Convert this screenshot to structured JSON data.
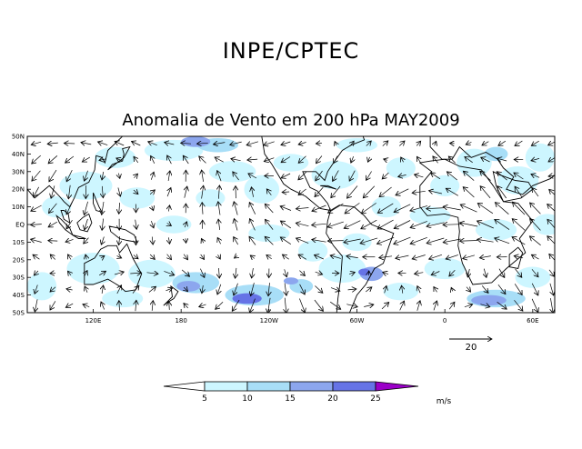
{
  "header": {
    "title": "INPE/CPTEC",
    "subtitle": "Anomalia de Vento em 200 hPa MAY2009"
  },
  "map": {
    "lat_labels": [
      "50N",
      "40N",
      "30N",
      "20N",
      "10N",
      "EQ",
      "10S",
      "20S",
      "30S",
      "40S",
      "50S"
    ],
    "lon_labels": [
      "120E",
      "180",
      "120W",
      "60W",
      "0",
      "60E"
    ],
    "lat_range": [
      -50,
      50
    ],
    "lon_range": [
      75,
      435
    ],
    "lon_ticks": [
      120,
      180,
      240,
      300,
      360,
      420
    ],
    "colors": {
      "ocean": "#ffffff",
      "land_outline": "#000000",
      "band_5_10": "#cdf6ff",
      "band_10_15": "#a8def7",
      "band_15_20": "#8ca6ee",
      "band_20_25": "#6673e6",
      "band_over_25": "#9b00c8"
    }
  },
  "reference_vector": {
    "label": "20",
    "value": 20
  },
  "colorbar": {
    "ticks": [
      "5",
      "10",
      "15",
      "20",
      "25"
    ],
    "unit": "m/s"
  }
}
